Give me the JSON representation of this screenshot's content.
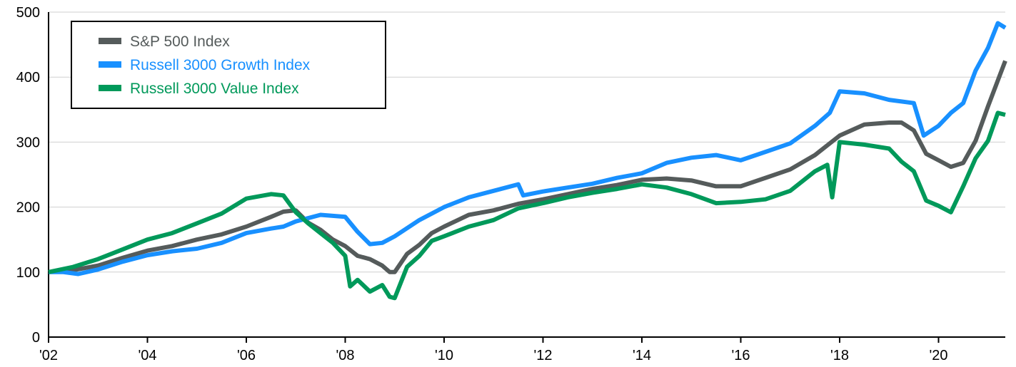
{
  "chart_data": {
    "type": "line",
    "title": "",
    "xlabel": "",
    "ylabel": "",
    "ylim": [
      0,
      500
    ],
    "xlim": [
      2002.0,
      2021.35
    ],
    "y_ticks": [
      "0",
      "100",
      "200",
      "300",
      "400",
      "500"
    ],
    "x_ticks": [
      "'02",
      "'04",
      "'06",
      "'08",
      "'10",
      "'12",
      "'14",
      "'16",
      "'18",
      "'20"
    ],
    "grid": "horizontal",
    "legend_position": "top-left",
    "series": [
      {
        "name": "S&P 500 Index",
        "color": "#555b5b",
        "x": [
          2002.0,
          2002.5,
          2003.0,
          2003.5,
          2004.0,
          2004.5,
          2005.0,
          2005.5,
          2006.0,
          2006.5,
          2006.75,
          2007.0,
          2007.25,
          2007.5,
          2007.75,
          2008.0,
          2008.25,
          2008.5,
          2008.75,
          2008.9,
          2009.0,
          2009.25,
          2009.5,
          2009.75,
          2010.0,
          2010.5,
          2011.0,
          2011.5,
          2012.0,
          2012.5,
          2013.0,
          2013.5,
          2014.0,
          2014.5,
          2015.0,
          2015.5,
          2016.0,
          2016.5,
          2017.0,
          2017.5,
          2018.0,
          2018.5,
          2019.0,
          2019.25,
          2019.5,
          2019.75,
          2020.0,
          2020.25,
          2020.5,
          2020.75,
          2021.0,
          2021.2,
          2021.35
        ],
        "values": [
          100,
          103,
          110,
          122,
          133,
          140,
          150,
          158,
          170,
          185,
          193,
          195,
          176,
          165,
          150,
          140,
          125,
          120,
          110,
          100,
          100,
          128,
          142,
          160,
          170,
          188,
          195,
          205,
          212,
          220,
          228,
          234,
          242,
          244,
          241,
          232,
          232,
          245,
          258,
          280,
          310,
          327,
          330,
          330,
          318,
          282,
          272,
          262,
          268,
          302,
          355,
          395,
          425
        ]
      },
      {
        "name": "Russell 3000 Growth Index",
        "color": "#1890ff",
        "x": [
          2002.0,
          2002.3,
          2002.6,
          2003.0,
          2003.5,
          2004.0,
          2004.5,
          2005.0,
          2005.5,
          2006.0,
          2006.5,
          2006.75,
          2007.0,
          2007.5,
          2008.0,
          2008.25,
          2008.5,
          2008.75,
          2009.0,
          2009.5,
          2010.0,
          2010.5,
          2011.0,
          2011.5,
          2011.6,
          2012.0,
          2012.5,
          2013.0,
          2013.5,
          2014.0,
          2014.5,
          2015.0,
          2015.5,
          2016.0,
          2016.5,
          2017.0,
          2017.5,
          2017.8,
          2018.0,
          2018.5,
          2019.0,
          2019.5,
          2019.7,
          2020.0,
          2020.25,
          2020.5,
          2020.75,
          2021.0,
          2021.2,
          2021.35
        ],
        "values": [
          100,
          100,
          97,
          104,
          116,
          126,
          132,
          136,
          145,
          160,
          167,
          170,
          178,
          188,
          185,
          162,
          143,
          145,
          155,
          180,
          200,
          215,
          225,
          235,
          218,
          224,
          230,
          236,
          245,
          252,
          268,
          276,
          280,
          272,
          285,
          298,
          325,
          345,
          378,
          375,
          365,
          360,
          310,
          325,
          345,
          360,
          410,
          445,
          483,
          476
        ]
      },
      {
        "name": "Russell 3000 Value Index",
        "color": "#00995a",
        "x": [
          2002.0,
          2002.5,
          2003.0,
          2003.5,
          2004.0,
          2004.5,
          2005.0,
          2005.5,
          2006.0,
          2006.5,
          2006.75,
          2007.0,
          2007.25,
          2007.5,
          2007.75,
          2008.0,
          2008.1,
          2008.25,
          2008.5,
          2008.75,
          2008.9,
          2009.0,
          2009.25,
          2009.5,
          2009.75,
          2010.0,
          2010.5,
          2011.0,
          2011.5,
          2012.0,
          2012.5,
          2013.0,
          2013.5,
          2014.0,
          2014.5,
          2015.0,
          2015.5,
          2016.0,
          2016.5,
          2017.0,
          2017.5,
          2017.75,
          2017.85,
          2018.0,
          2018.5,
          2019.0,
          2019.25,
          2019.5,
          2019.75,
          2020.0,
          2020.25,
          2020.5,
          2020.75,
          2021.0,
          2021.2,
          2021.35
        ],
        "values": [
          100,
          108,
          120,
          135,
          150,
          160,
          175,
          190,
          213,
          220,
          218,
          192,
          175,
          160,
          145,
          125,
          78,
          88,
          70,
          80,
          62,
          60,
          108,
          125,
          148,
          155,
          170,
          180,
          198,
          206,
          215,
          222,
          228,
          235,
          230,
          220,
          206,
          208,
          212,
          225,
          255,
          265,
          215,
          300,
          296,
          290,
          270,
          255,
          210,
          202,
          192,
          232,
          275,
          302,
          345,
          342
        ]
      }
    ]
  }
}
